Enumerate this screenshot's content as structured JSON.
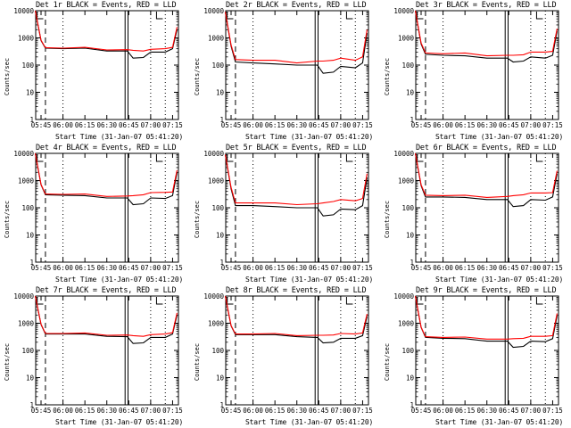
{
  "panels": [
    {
      "title": "Det 1r BLACK = Events, RED = LLD"
    },
    {
      "title": "Det 2r BLACK = Events, RED = LLD"
    },
    {
      "title": "Det 3r BLACK = Events, RED = LLD"
    },
    {
      "title": "Det 4r BLACK = Events, RED = LLD"
    },
    {
      "title": "Det 5r BLACK = Events, RED = LLD"
    },
    {
      "title": "Det 6r BLACK = Events, RED = LLD"
    },
    {
      "title": "Det 7r BLACK = Events, RED = LLD"
    },
    {
      "title": "Det 8r BLACK = Events, RED = LLD"
    },
    {
      "title": "Det 9r BLACK = Events, RED = LLD"
    }
  ],
  "ylabel": "Counts/sec",
  "xlabel": "Start Time (31-Jan-07 05:41:20)",
  "xticks": [
    "05:45",
    "06:00",
    "06:15",
    "06:30",
    "06:45",
    "07:00",
    "07:15"
  ],
  "yticks": [
    "1",
    "10",
    "100",
    "1000",
    "10000"
  ],
  "colors": {
    "events": "#000000",
    "lld": "#ff0000",
    "background": "#ffffff"
  },
  "chart_data": [
    {
      "type": "line",
      "title": "Det 1r BLACK = Events, RED = LLD",
      "xlabel": "Start Time (31-Jan-07 05:41:20)",
      "ylabel": "Counts/sec",
      "yscale": "log",
      "ylim": [
        1,
        10000
      ],
      "x": [
        "05:41",
        "05:45",
        "05:48",
        "06:00",
        "06:15",
        "06:30",
        "06:44",
        "06:48",
        "06:55",
        "07:00",
        "07:10",
        "07:15",
        "07:18"
      ],
      "series": [
        {
          "values": [
            10000,
            800,
            420,
            400,
            420,
            330,
            330,
            180,
            190,
            300,
            300,
            400,
            2000
          ]
        },
        {
          "values": [
            10000,
            820,
            440,
            420,
            450,
            360,
            370,
            350,
            330,
            380,
            400,
            450,
            2500
          ]
        }
      ]
    },
    {
      "type": "line",
      "title": "Det 2r BLACK = Events, RED = LLD",
      "xlabel": "Start Time (31-Jan-07 05:41:20)",
      "ylabel": "Counts/sec",
      "yscale": "log",
      "ylim": [
        1,
        10000
      ],
      "x": [
        "05:41",
        "05:45",
        "05:48",
        "06:00",
        "06:15",
        "06:30",
        "06:44",
        "06:48",
        "06:55",
        "07:00",
        "07:10",
        "07:15",
        "07:18"
      ],
      "series": [
        {
          "values": [
            9000,
            500,
            130,
            120,
            110,
            100,
            100,
            50,
            55,
            90,
            80,
            120,
            1500
          ]
        },
        {
          "values": [
            9000,
            550,
            160,
            150,
            150,
            120,
            140,
            140,
            150,
            180,
            150,
            200,
            2000
          ]
        }
      ]
    },
    {
      "type": "line",
      "title": "Det 3r BLACK = Events, RED = LLD",
      "xlabel": "Start Time (31-Jan-07 05:41:20)",
      "ylabel": "Counts/sec",
      "yscale": "log",
      "ylim": [
        1,
        10000
      ],
      "x": [
        "05:41",
        "05:45",
        "05:48",
        "06:00",
        "06:15",
        "06:30",
        "06:44",
        "06:48",
        "06:55",
        "07:00",
        "07:10",
        "07:15",
        "07:18"
      ],
      "series": [
        {
          "values": [
            10000,
            600,
            250,
            230,
            220,
            180,
            180,
            130,
            140,
            200,
            180,
            230,
            1800
          ]
        },
        {
          "values": [
            10000,
            650,
            280,
            260,
            280,
            220,
            230,
            230,
            240,
            300,
            300,
            320,
            2200
          ]
        }
      ]
    },
    {
      "type": "line",
      "title": "Det 4r BLACK = Events, RED = LLD",
      "xlabel": "Start Time (31-Jan-07 05:41:20)",
      "ylabel": "Counts/sec",
      "yscale": "log",
      "ylim": [
        1,
        10000
      ],
      "x": [
        "05:41",
        "05:45",
        "05:48",
        "06:00",
        "06:15",
        "06:30",
        "06:44",
        "06:48",
        "06:55",
        "07:00",
        "07:10",
        "07:15",
        "07:18"
      ],
      "series": [
        {
          "values": [
            10000,
            700,
            300,
            290,
            280,
            230,
            230,
            130,
            140,
            230,
            220,
            280,
            2000
          ]
        },
        {
          "values": [
            10000,
            720,
            320,
            310,
            320,
            260,
            270,
            280,
            300,
            360,
            370,
            380,
            2400
          ]
        }
      ]
    },
    {
      "type": "line",
      "title": "Det 5r BLACK = Events, RED = LLD",
      "xlabel": "Start Time (31-Jan-07 05:41:20)",
      "ylabel": "Counts/sec",
      "yscale": "log",
      "ylim": [
        1,
        10000
      ],
      "x": [
        "05:41",
        "05:45",
        "05:48",
        "06:00",
        "06:15",
        "06:30",
        "06:44",
        "06:48",
        "06:55",
        "07:00",
        "07:10",
        "07:15",
        "07:18"
      ],
      "series": [
        {
          "values": [
            9000,
            500,
            120,
            120,
            110,
            100,
            100,
            50,
            55,
            90,
            85,
            120,
            1300
          ]
        },
        {
          "values": [
            9000,
            560,
            150,
            150,
            150,
            130,
            140,
            150,
            170,
            200,
            180,
            220,
            1800
          ]
        }
      ]
    },
    {
      "type": "line",
      "title": "Det 6r BLACK = Events, RED = LLD",
      "xlabel": "Start Time (31-Jan-07 05:41:20)",
      "ylabel": "Counts/sec",
      "yscale": "log",
      "ylim": [
        1,
        10000
      ],
      "x": [
        "05:41",
        "05:45",
        "05:48",
        "06:00",
        "06:15",
        "06:30",
        "06:44",
        "06:48",
        "06:55",
        "07:00",
        "07:10",
        "07:15",
        "07:18"
      ],
      "series": [
        {
          "values": [
            10000,
            650,
            250,
            250,
            240,
            200,
            200,
            110,
            120,
            200,
            190,
            250,
            1800
          ]
        },
        {
          "values": [
            10000,
            700,
            290,
            280,
            290,
            240,
            260,
            280,
            300,
            350,
            350,
            360,
            2300
          ]
        }
      ]
    },
    {
      "type": "line",
      "title": "Det 7r BLACK = Events, RED = LLD",
      "xlabel": "Start Time (31-Jan-07 05:41:20)",
      "ylabel": "Counts/sec",
      "yscale": "log",
      "ylim": [
        1,
        10000
      ],
      "x": [
        "05:41",
        "05:45",
        "05:48",
        "06:00",
        "06:15",
        "06:30",
        "06:44",
        "06:48",
        "06:55",
        "07:00",
        "07:10",
        "07:15",
        "07:18"
      ],
      "series": [
        {
          "values": [
            10000,
            900,
            400,
            400,
            400,
            330,
            320,
            180,
            190,
            300,
            300,
            400,
            2000
          ]
        },
        {
          "values": [
            10000,
            920,
            420,
            420,
            440,
            360,
            370,
            350,
            330,
            380,
            400,
            450,
            2400
          ]
        }
      ]
    },
    {
      "type": "line",
      "title": "Det 8r BLACK = Events, RED = LLD",
      "xlabel": "Start Time (31-Jan-07 05:41:20)",
      "ylabel": "Counts/sec",
      "yscale": "log",
      "ylim": [
        1,
        10000
      ],
      "x": [
        "05:41",
        "05:45",
        "05:48",
        "06:00",
        "06:15",
        "06:30",
        "06:44",
        "06:48",
        "06:55",
        "07:00",
        "07:10",
        "07:15",
        "07:18"
      ],
      "series": [
        {
          "values": [
            10000,
            800,
            380,
            380,
            380,
            320,
            300,
            190,
            200,
            280,
            280,
            350,
            1800
          ]
        },
        {
          "values": [
            10000,
            820,
            400,
            400,
            420,
            350,
            360,
            360,
            370,
            420,
            400,
            440,
            2200
          ]
        }
      ]
    },
    {
      "type": "line",
      "title": "Det 9r BLACK = Events, RED = LLD",
      "xlabel": "Start Time (31-Jan-07 05:41:20)",
      "ylabel": "Counts/sec",
      "yscale": "log",
      "ylim": [
        1,
        10000
      ],
      "x": [
        "05:41",
        "05:45",
        "05:48",
        "06:00",
        "06:15",
        "06:30",
        "06:44",
        "06:48",
        "06:55",
        "07:00",
        "07:10",
        "07:15",
        "07:18"
      ],
      "series": [
        {
          "values": [
            10000,
            700,
            300,
            280,
            270,
            220,
            220,
            130,
            140,
            220,
            210,
            270,
            1900
          ]
        },
        {
          "values": [
            10000,
            720,
            320,
            300,
            310,
            260,
            260,
            270,
            280,
            330,
            330,
            350,
            2300
          ]
        }
      ]
    }
  ]
}
